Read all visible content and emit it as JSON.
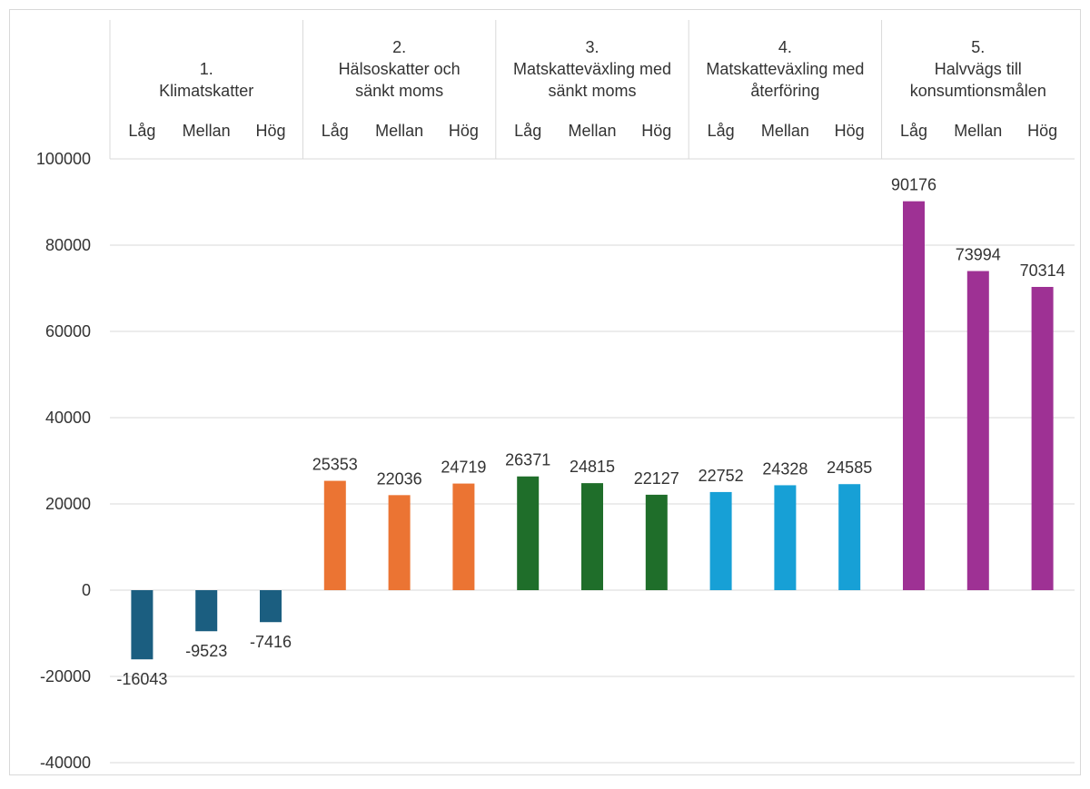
{
  "chart_data": {
    "type": "bar",
    "title": "",
    "xlabel": "",
    "ylabel": "",
    "ylim": [
      -40000,
      100000
    ],
    "yticks": [
      100000,
      80000,
      60000,
      40000,
      20000,
      0,
      -20000,
      -40000
    ],
    "grid": true,
    "groups": [
      {
        "number": "1.",
        "name_lines": [
          "Klimatskatter"
        ],
        "color": "#1b5e80",
        "categories": [
          "Låg",
          "Mellan",
          "Hög"
        ],
        "values": [
          -16043,
          -9523,
          -7416
        ]
      },
      {
        "number": "2.",
        "name_lines": [
          "Hälsoskatter och",
          "sänkt moms"
        ],
        "color": "#eb7433",
        "categories": [
          "Låg",
          "Mellan",
          "Hög"
        ],
        "values": [
          25353,
          22036,
          24719
        ]
      },
      {
        "number": "3.",
        "name_lines": [
          "Matskatteväxling med",
          "sänkt moms"
        ],
        "color": "#1f6e2a",
        "categories": [
          "Låg",
          "Mellan",
          "Hög"
        ],
        "values": [
          26371,
          24815,
          22127
        ]
      },
      {
        "number": "4.",
        "name_lines": [
          "Matskatteväxling med",
          "återföring"
        ],
        "color": "#17a0d6",
        "categories": [
          "Låg",
          "Mellan",
          "Hög"
        ],
        "values": [
          22752,
          24328,
          24585
        ]
      },
      {
        "number": "5.",
        "name_lines": [
          "Halvvägs till",
          "konsumtionsmålen"
        ],
        "color": "#9e3194",
        "categories": [
          "Låg",
          "Mellan",
          "Hög"
        ],
        "values": [
          90176,
          73994,
          70314
        ]
      }
    ]
  }
}
